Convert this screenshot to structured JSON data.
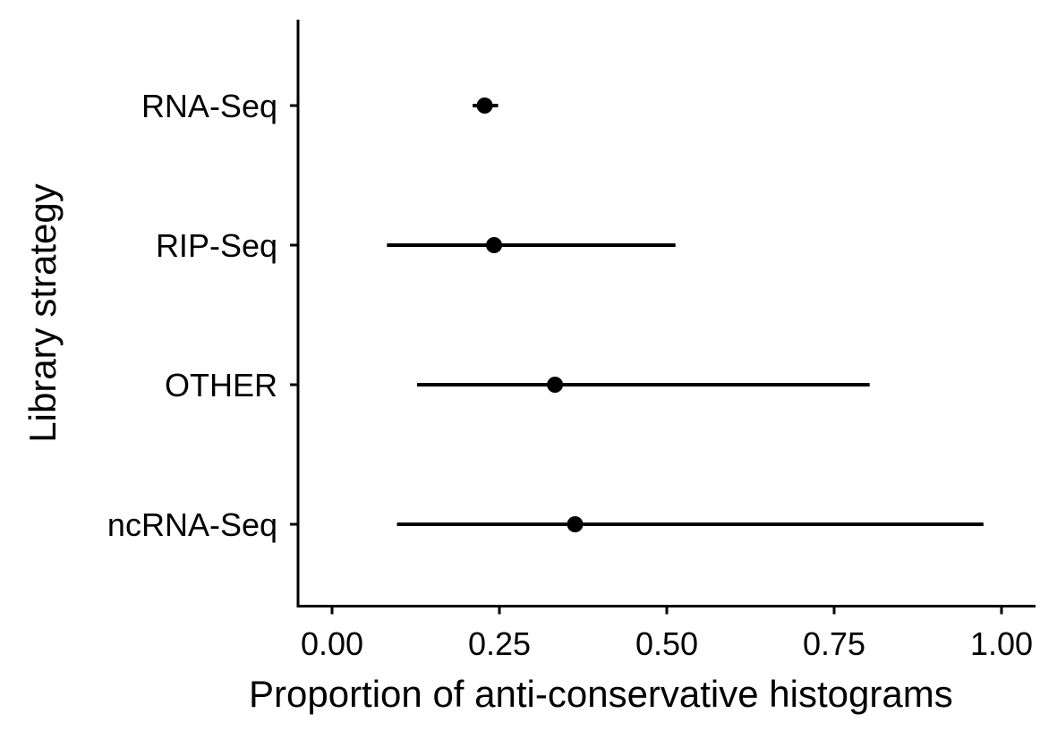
{
  "chart_data": {
    "type": "scatter",
    "orientation": "horizontal",
    "xlabel": "Proportion of anti-conservative histograms",
    "ylabel": "Library strategy",
    "x_ticks": [
      "0.00",
      "0.25",
      "0.50",
      "0.75",
      "1.00"
    ],
    "x_tick_values": [
      0,
      0.25,
      0.5,
      0.75,
      1.0
    ],
    "xlim": [
      -0.05,
      1.05
    ],
    "categories": [
      "RNA-Seq",
      "RIP-Seq",
      "OTHER",
      "ncRNA-Seq"
    ],
    "points": [
      {
        "category": "RNA-Seq",
        "estimate": 0.228,
        "lower": 0.21,
        "upper": 0.248
      },
      {
        "category": "RIP-Seq",
        "estimate": 0.242,
        "lower": 0.082,
        "upper": 0.513
      },
      {
        "category": "OTHER",
        "estimate": 0.333,
        "lower": 0.127,
        "upper": 0.803
      },
      {
        "category": "ncRNA-Seq",
        "estimate": 0.363,
        "lower": 0.097,
        "upper": 0.973
      }
    ],
    "grid": false,
    "legend": "none",
    "colors": {
      "mark": "#000000",
      "axis": "#000000"
    }
  }
}
